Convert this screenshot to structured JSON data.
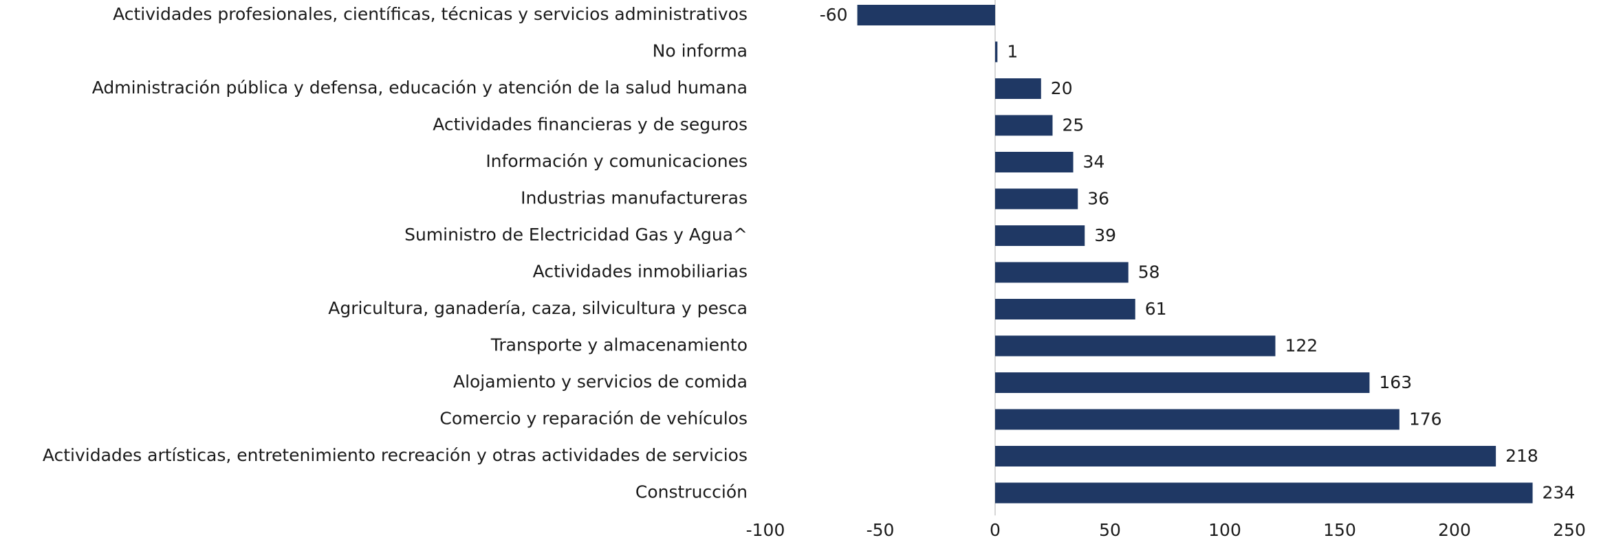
{
  "chart_data": {
    "type": "bar",
    "orientation": "horizontal",
    "categories": [
      "Actividades profesionales, científicas, técnicas y servicios administrativos",
      "No informa",
      "Administración pública y defensa, educación y atención de la salud humana",
      "Actividades financieras y de seguros",
      "Información y comunicaciones",
      "Industrias manufactureras",
      "Suministro de Electricidad Gas y Agua^",
      "Actividades inmobiliarias",
      "Agricultura, ganadería, caza, silvicultura y pesca",
      "Transporte y almacenamiento",
      "Alojamiento y servicios de comida",
      "Comercio y reparación de vehículos",
      "Actividades artísticas, entretenimiento recreación y otras actividades de servicios",
      "Construcción"
    ],
    "values": [
      -60,
      1,
      20,
      25,
      34,
      36,
      39,
      58,
      61,
      122,
      163,
      176,
      218,
      234
    ],
    "color": "#1f3864",
    "xlim": [
      -100,
      250
    ],
    "xticks": [
      -100,
      -50,
      0,
      50,
      100,
      150,
      200,
      250
    ],
    "grid": false
  }
}
